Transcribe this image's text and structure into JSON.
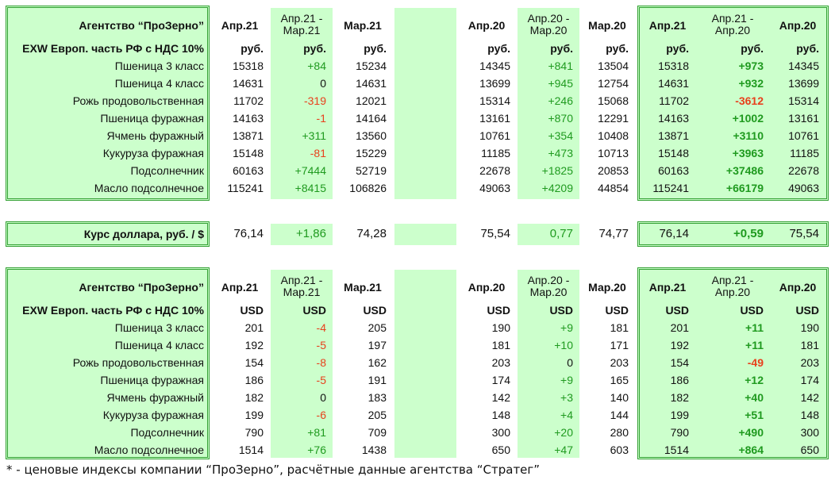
{
  "note": "* - ценовые индексы компании “ПроЗерно”, расчётные данные агентства “Стратег”",
  "rub_table": {
    "title": "Агентство “ПроЗерно”",
    "subtitle": "EXW Европ. часть РФ с НДС 10%",
    "headers": [
      "Апр.21",
      "Апр.21 - Мар.21",
      "Мар.21",
      "",
      "Апр.20",
      "Апр.20 - Мар.20",
      "Мар.20",
      "Апр.21",
      "Апр.21 - Апр.20",
      "Апр.20"
    ],
    "units": [
      "руб.",
      "руб.",
      "руб.",
      "",
      "руб.",
      "руб.",
      "руб.",
      "руб.",
      "руб.",
      "руб."
    ],
    "rows": [
      {
        "name": "Пшеница 3 класс",
        "v": [
          "15318",
          "+84",
          "15234",
          "14345",
          "+841",
          "13504",
          "15318",
          "+973",
          "14345"
        ]
      },
      {
        "name": "Пшеница 4 класс",
        "v": [
          "14631",
          "0",
          "14631",
          "13699",
          "+945",
          "12754",
          "14631",
          "+932",
          "13699"
        ]
      },
      {
        "name": "Рожь продовольственная",
        "v": [
          "11702",
          "-319",
          "12021",
          "15314",
          "+246",
          "15068",
          "11702",
          "-3612",
          "15314"
        ]
      },
      {
        "name": "Пшеница фуражная",
        "v": [
          "14163",
          "-1",
          "14164",
          "13161",
          "+870",
          "12291",
          "14163",
          "+1002",
          "13161"
        ]
      },
      {
        "name": "Ячмень фуражный",
        "v": [
          "13871",
          "+311",
          "13560",
          "10761",
          "+354",
          "10408",
          "13871",
          "+3110",
          "10761"
        ]
      },
      {
        "name": "Кукуруза фуражная",
        "v": [
          "15148",
          "-81",
          "15229",
          "11185",
          "+473",
          "10713",
          "15148",
          "+3963",
          "11185"
        ]
      },
      {
        "name": "Подсолнечник",
        "v": [
          "60163",
          "+7444",
          "52719",
          "22678",
          "+1825",
          "20853",
          "60163",
          "+37486",
          "22678"
        ]
      },
      {
        "name": "Масло подсолнечное",
        "v": [
          "115241",
          "+8415",
          "106826",
          "49063",
          "+4209",
          "44854",
          "115241",
          "+66179",
          "49063"
        ]
      }
    ]
  },
  "fx": {
    "label": "Курс доллара, руб. / $",
    "v": [
      "76,14",
      "+1,86",
      "74,28",
      "75,54",
      "0,77",
      "74,77",
      "76,14",
      "+0,59",
      "75,54"
    ]
  },
  "usd_table": {
    "title": "Агентство “ПроЗерно”",
    "subtitle": "EXW Европ. часть РФ с НДС 10%",
    "headers": [
      "Апр.21",
      "Апр.21 - Мар.21",
      "Мар.21",
      "",
      "Апр.20",
      "Апр.20 - Мар.20",
      "Мар.20",
      "Апр.21",
      "Апр.21 - Апр.20",
      "Апр.20"
    ],
    "units": [
      "USD",
      "USD",
      "USD",
      "",
      "USD",
      "USD",
      "USD",
      "USD",
      "USD",
      "USD"
    ],
    "rows": [
      {
        "name": "Пшеница 3 класс",
        "v": [
          "201",
          "-4",
          "205",
          "190",
          "+9",
          "181",
          "201",
          "+11",
          "190"
        ]
      },
      {
        "name": "Пшеница 4 класс",
        "v": [
          "192",
          "-5",
          "197",
          "181",
          "+10",
          "171",
          "192",
          "+11",
          "181"
        ]
      },
      {
        "name": "Рожь продовольственная",
        "v": [
          "154",
          "-8",
          "162",
          "203",
          "0",
          "203",
          "154",
          "-49",
          "203"
        ]
      },
      {
        "name": "Пшеница фуражная",
        "v": [
          "186",
          "-5",
          "191",
          "174",
          "+9",
          "165",
          "186",
          "+12",
          "174"
        ]
      },
      {
        "name": "Ячмень фуражный",
        "v": [
          "182",
          "0",
          "183",
          "142",
          "+3",
          "140",
          "182",
          "+40",
          "142"
        ]
      },
      {
        "name": "Кукуруза фуражная",
        "v": [
          "199",
          "-6",
          "205",
          "148",
          "+4",
          "144",
          "199",
          "+51",
          "148"
        ]
      },
      {
        "name": "Подсолнечник",
        "v": [
          "790",
          "+81",
          "709",
          "300",
          "+20",
          "280",
          "790",
          "+490",
          "300"
        ]
      },
      {
        "name": "Масло подсолнечное",
        "v": [
          "1514",
          "+76",
          "1438",
          "650",
          "+47",
          "603",
          "1514",
          "+864",
          "650"
        ]
      }
    ]
  }
}
